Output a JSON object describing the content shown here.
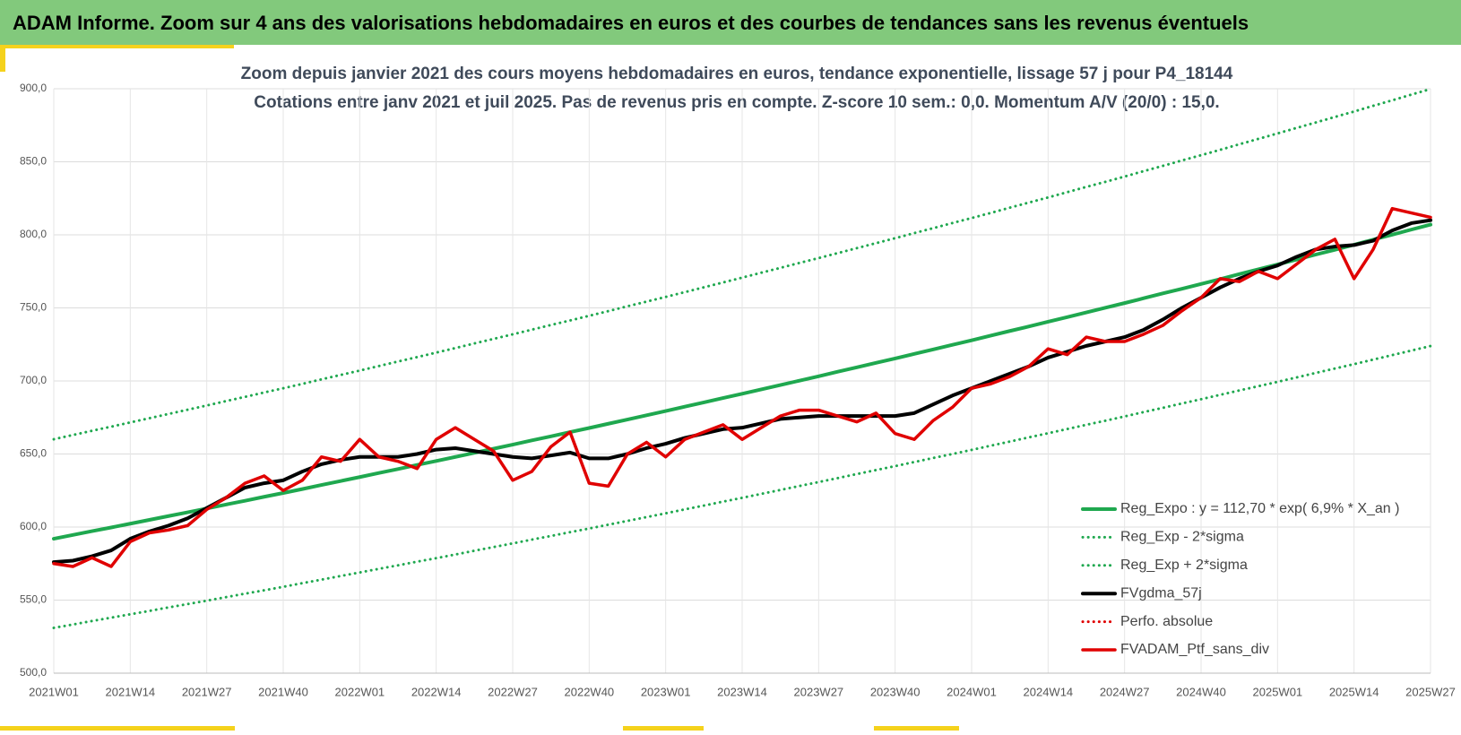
{
  "header": {
    "title": "ADAM Informe. Zoom sur 4 ans des valorisations hebdomadaires en euros et des courbes de tendances sans les revenus éventuels"
  },
  "chart_data": {
    "type": "line",
    "title": "Zoom depuis janvier 2021 des cours moyens hebdomadaires  en euros, tendance exponentielle, lissage 57 j pour P4_18144",
    "subtitle": "Cotations entre janv 2021 et juil 2025. Pas de revenus pris en compte. Z-score 10 sem.: 0,0. Momentum A/V (20/0) : 15,0.",
    "categories": [
      "2021W01",
      null,
      null,
      null,
      "2021W14",
      null,
      null,
      null,
      "2021W27",
      null,
      null,
      null,
      "2021W40",
      null,
      null,
      null,
      "2022W01",
      null,
      null,
      null,
      "2022W14",
      null,
      null,
      null,
      "2022W27",
      null,
      null,
      null,
      "2022W40",
      null,
      null,
      null,
      "2023W01",
      null,
      null,
      null,
      "2023W14",
      null,
      null,
      null,
      "2023W27",
      null,
      null,
      null,
      "2023W40",
      null,
      null,
      null,
      "2024W01",
      null,
      null,
      null,
      "2024W14",
      null,
      null,
      null,
      "2024W27",
      null,
      null,
      null,
      "2024W40",
      null,
      null,
      null,
      "2025W01",
      null,
      null,
      null,
      "2025W14",
      null,
      null,
      null,
      "2025W27"
    ],
    "ylim": [
      500,
      900
    ],
    "yticks": [
      {
        "value": 500,
        "label": "500,0"
      },
      {
        "value": 550,
        "label": "550,0"
      },
      {
        "value": 600,
        "label": "600,0"
      },
      {
        "value": 650,
        "label": "650,0"
      },
      {
        "value": 700,
        "label": "700,0"
      },
      {
        "value": 750,
        "label": "750,0"
      },
      {
        "value": 800,
        "label": "800,0"
      },
      {
        "value": 850,
        "label": "850,0"
      },
      {
        "value": 900,
        "label": "900,0"
      }
    ],
    "grid": true,
    "legend": "lower-right",
    "series": [
      {
        "name": "Reg_Expo : y = 112,70 * exp( 6,9% *  X_an )",
        "color": "#1fa84f",
        "dashed": false,
        "width": 4,
        "values": [
          592.0,
          594.6,
          597.2,
          599.7,
          602.3,
          604.9,
          607.5,
          610.1,
          612.7,
          615.4,
          618.0,
          620.7,
          623.3,
          626.0,
          628.8,
          631.5,
          634.2,
          637.0,
          639.7,
          642.5,
          645.2,
          648.0,
          650.8,
          653.6,
          656.4,
          659.3,
          662.1,
          665.0,
          667.8,
          670.7,
          673.6,
          676.5,
          679.4,
          682.4,
          685.3,
          688.3,
          691.2,
          694.2,
          697.2,
          700.2,
          703.2,
          706.3,
          709.3,
          712.4,
          715.4,
          718.5,
          721.6,
          724.7,
          727.8,
          731.0,
          734.2,
          737.3,
          740.5,
          743.7,
          746.9,
          750.1,
          753.3,
          756.6,
          759.9,
          763.1,
          766.4,
          769.7,
          773.1,
          776.4,
          779.7,
          783.1,
          786.5,
          789.8,
          793.2,
          796.7,
          800.1,
          803.6,
          807.0
        ]
      },
      {
        "name": "Reg_Exp - 2*sigma",
        "color": "#1fa84f",
        "dashed": true,
        "width": 3,
        "values": [
          531.0,
          533.3,
          535.7,
          538.0,
          540.3,
          542.6,
          545.0,
          547.3,
          549.6,
          552.0,
          554.4,
          556.7,
          559.1,
          561.6,
          564.0,
          566.5,
          568.9,
          571.4,
          573.8,
          576.3,
          578.7,
          581.2,
          583.8,
          586.3,
          588.8,
          591.4,
          593.9,
          596.5,
          599.0,
          601.6,
          604.2,
          606.8,
          609.4,
          612.1,
          614.7,
          617.4,
          620.0,
          622.7,
          625.4,
          628.1,
          630.8,
          633.5,
          636.3,
          639.0,
          641.7,
          644.5,
          647.3,
          650.0,
          652.8,
          655.7,
          658.5,
          661.4,
          664.2,
          667.1,
          670.0,
          672.8,
          675.7,
          678.7,
          681.6,
          684.6,
          687.5,
          690.5,
          693.5,
          696.4,
          699.4,
          702.4,
          705.5,
          708.5,
          711.5,
          714.6,
          717.7,
          720.8,
          723.9
        ]
      },
      {
        "name": "Reg_Exp + 2*sigma",
        "color": "#1fa84f",
        "dashed": true,
        "width": 3,
        "values": [
          660.1,
          663.0,
          665.9,
          668.7,
          671.6,
          674.5,
          677.4,
          680.3,
          683.2,
          686.2,
          689.1,
          692.1,
          695.0,
          698.0,
          701.1,
          704.1,
          707.1,
          710.2,
          713.3,
          716.3,
          719.4,
          722.5,
          725.7,
          728.8,
          731.9,
          735.1,
          738.3,
          741.4,
          744.6,
          747.8,
          751.1,
          754.3,
          757.5,
          760.8,
          764.1,
          767.4,
          770.7,
          774.1,
          777.4,
          780.8,
          784.1,
          787.5,
          790.9,
          794.3,
          797.7,
          801.2,
          804.6,
          808.1,
          811.5,
          815.0,
          818.6,
          822.1,
          825.6,
          829.2,
          832.8,
          836.3,
          839.9,
          843.6,
          847.2,
          850.9,
          854.5,
          858.2,
          862.0,
          865.7,
          869.4,
          873.2,
          876.9,
          880.7,
          884.4,
          888.3,
          892.1,
          896.0,
          899.8
        ]
      },
      {
        "name": "FVgdma_57j",
        "color": "#000000",
        "dashed": false,
        "width": 4,
        "values": [
          576,
          577,
          580,
          584,
          592,
          597,
          601,
          606,
          613,
          620,
          627,
          630,
          632,
          638,
          643,
          646,
          648,
          648,
          648,
          650,
          653,
          654,
          652,
          650,
          648,
          647,
          649,
          651,
          647,
          647,
          650,
          654,
          657,
          661,
          664,
          667,
          668,
          671,
          674,
          675,
          676,
          676,
          676,
          676,
          676,
          678,
          684,
          690,
          695,
          700,
          705,
          710,
          716,
          720,
          724,
          727,
          730,
          735,
          742,
          750,
          757,
          764,
          770,
          775,
          779,
          785,
          790,
          792,
          793,
          796,
          803,
          808,
          810
        ]
      },
      {
        "name": "Perfo. absolue",
        "color": "#e00000",
        "dashed": true,
        "width": 3,
        "values": [
          null,
          null,
          null,
          null,
          null,
          null,
          null,
          null,
          null,
          null,
          null,
          null,
          null,
          null,
          null,
          null,
          null,
          null,
          null,
          null,
          null,
          null,
          null,
          null,
          null,
          null,
          null,
          null,
          null,
          null,
          null,
          null,
          null,
          null,
          null,
          null,
          null,
          null,
          null,
          null,
          null,
          null,
          null,
          null,
          null,
          null,
          null,
          null,
          null,
          null,
          null,
          null,
          null,
          null,
          null,
          null,
          null,
          null,
          null,
          null,
          null,
          null,
          null,
          null,
          null,
          null,
          null,
          null,
          null,
          null,
          null,
          null,
          null
        ]
      },
      {
        "name": "FVADAM_Ptf_sans_div",
        "color": "#e00000",
        "dashed": false,
        "width": 3.5,
        "values": [
          575,
          573,
          579,
          573,
          590,
          596,
          598,
          601,
          612,
          620,
          630,
          635,
          625,
          632,
          648,
          645,
          660,
          648,
          645,
          640,
          660,
          668,
          660,
          652,
          632,
          638,
          655,
          665,
          630,
          628,
          650,
          658,
          648,
          660,
          665,
          670,
          660,
          668,
          676,
          680,
          680,
          676,
          672,
          678,
          664,
          660,
          673,
          682,
          695,
          698,
          703,
          710,
          722,
          718,
          730,
          727,
          727,
          732,
          738,
          748,
          757,
          770,
          768,
          775,
          770,
          780,
          790,
          797,
          770,
          790,
          818,
          815,
          812
        ]
      }
    ]
  }
}
